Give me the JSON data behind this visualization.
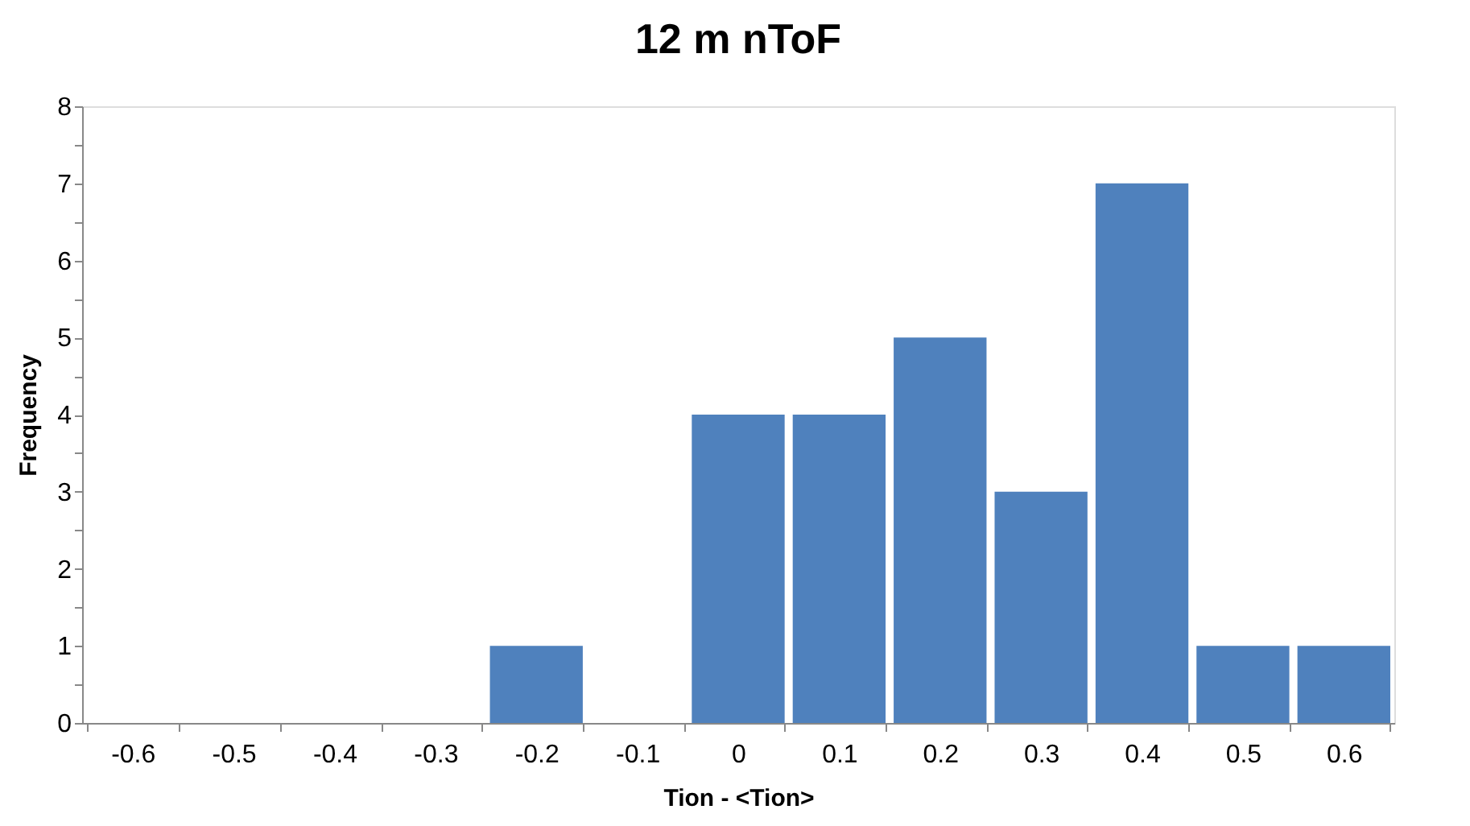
{
  "chart_data": {
    "type": "bar",
    "title": "12 m nToF",
    "xlabel": "Tion - <Tion>",
    "ylabel": "Frequency",
    "categories": [
      "-0.6",
      "-0.5",
      "-0.4",
      "-0.3",
      "-0.2",
      "-0.1",
      "0",
      "0.1",
      "0.2",
      "0.3",
      "0.4",
      "0.5",
      "0.6"
    ],
    "values": [
      0,
      0,
      0,
      0,
      1,
      0,
      4,
      4,
      5,
      3,
      7,
      1,
      1
    ],
    "color": "#4f81bd",
    "ylim": [
      0,
      8
    ],
    "yticks": [
      0,
      {
        "value": 0.5,
        "label": null
      },
      1,
      {
        "value": 1.5,
        "label": null
      },
      2,
      {
        "value": 2.5,
        "label": null
      },
      3,
      {
        "value": 3.5,
        "label": null
      },
      4,
      {
        "value": 4.5,
        "label": null
      },
      5,
      {
        "value": 5.5,
        "label": null
      },
      6,
      {
        "value": 6.5,
        "label": null
      },
      7,
      {
        "value": 7.5,
        "label": null
      },
      8
    ],
    "grid": false
  }
}
